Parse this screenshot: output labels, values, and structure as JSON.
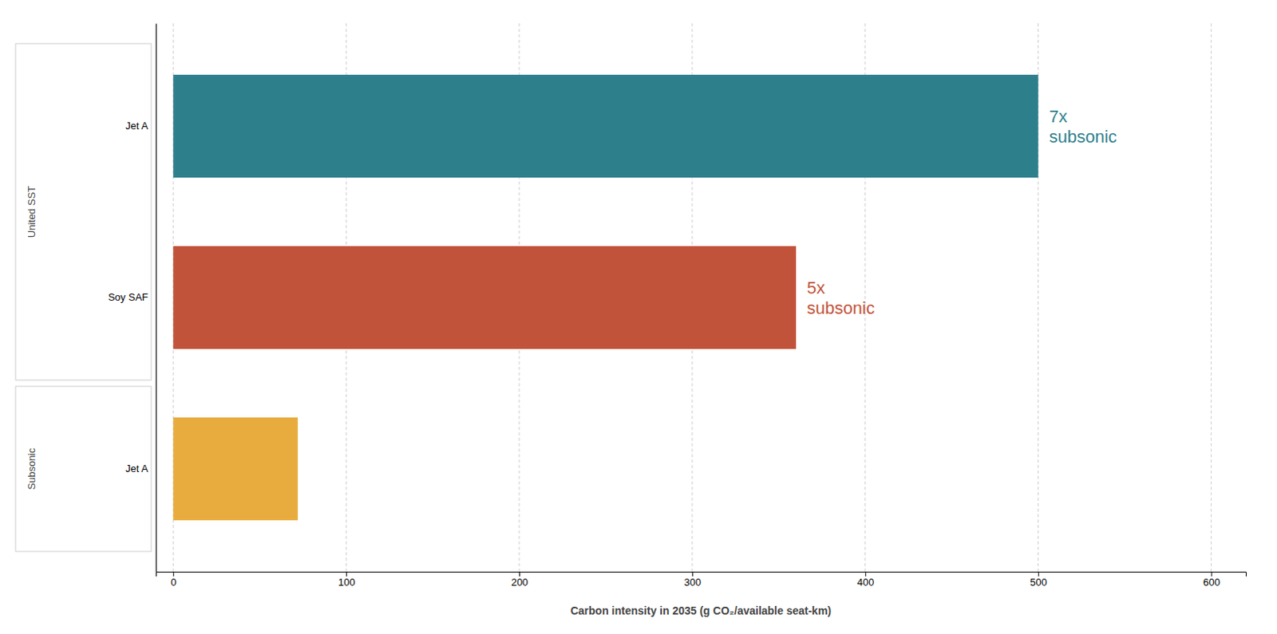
{
  "chart_data": {
    "type": "bar",
    "orientation": "horizontal",
    "categories": [
      "Jet A",
      "Soy SAF",
      "Jet A"
    ],
    "groups": [
      "United SST",
      "United SST",
      "Subsonic"
    ],
    "values": [
      500,
      360,
      72
    ],
    "colors": [
      "#2e7f8c",
      "#c1533a",
      "#e8ac3e"
    ],
    "xlabel": "Carbon intensity in 2035 (g CO₂/available seat-km)",
    "xlim": [
      -10,
      620
    ],
    "xticks": [
      0,
      100,
      200,
      300,
      400,
      500,
      600
    ],
    "annotations": [
      {
        "text": "7x\nsubsonic",
        "category": 0,
        "color": "#2e7f8c"
      },
      {
        "text": "5x\nsubsonic",
        "category": 1,
        "color": "#c1533a"
      }
    ],
    "grid": true
  }
}
